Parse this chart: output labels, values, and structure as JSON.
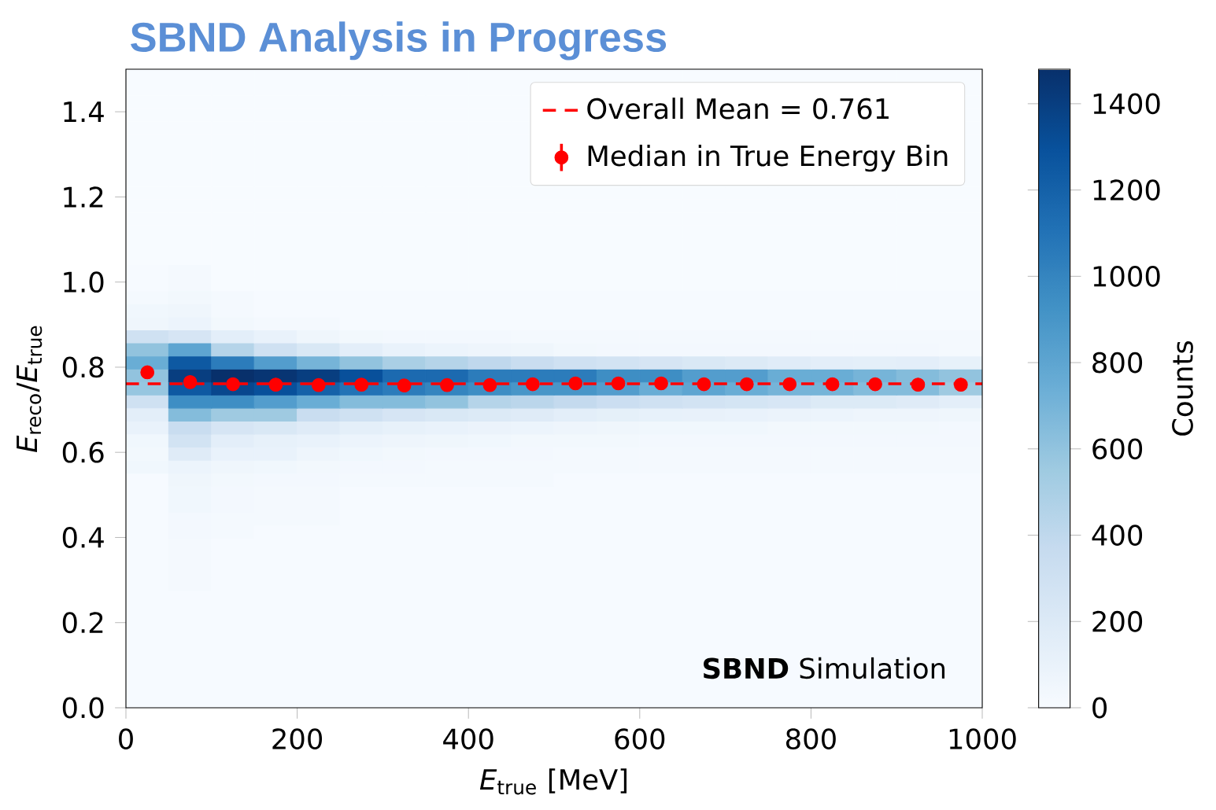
{
  "chart_data": {
    "type": "heatmap",
    "title": "SBND Analysis in Progress",
    "xlabel": "*E*$_{true}$ [MeV]",
    "ylabel": "*E*$_{reco}$/*E*$_{true}$",
    "clabel": "Counts",
    "annotations": [
      "**SBND** Simulation"
    ],
    "xlim": [
      0,
      1000
    ],
    "ylim": [
      0,
      1.5
    ],
    "xticks": [
      0,
      200,
      400,
      600,
      800,
      1000
    ],
    "yticks": [
      {
        "value": 0,
        "label": "0.0"
      },
      0.2,
      0.4,
      0.6,
      0.8,
      {
        "value": 1,
        "label": "1.0"
      },
      1.2,
      1.4
    ],
    "clim": [
      0,
      1480
    ],
    "cticks": [
      0,
      200,
      400,
      600,
      800,
      1000,
      1200,
      1400
    ],
    "legend": "top right",
    "ref_lines": [
      {
        "axis": "y",
        "value": 0.761,
        "label": "Overall Mean = 0.761",
        "color": "#ff0000",
        "line_style": "dashed"
      }
    ],
    "series": [
      {
        "type": "scatter",
        "name": "Median in True Energy Bin",
        "color": "#ff0000",
        "marker": "circle",
        "x": [
          25,
          75,
          125,
          175,
          225,
          275,
          325,
          375,
          425,
          475,
          525,
          575,
          625,
          675,
          725,
          775,
          825,
          875,
          925,
          975
        ],
        "values": [
          0.788,
          0.765,
          0.76,
          0.759,
          0.758,
          0.759,
          0.757,
          0.758,
          0.758,
          0.76,
          0.762,
          0.762,
          0.762,
          0.76,
          0.76,
          0.76,
          0.76,
          0.76,
          0.759,
          0.759
        ]
      }
    ],
    "cells": [
      [
        0,
        0,
        0,
        0,
        0,
        0,
        0,
        0,
        0,
        0,
        0,
        0,
        0,
        0,
        0,
        0,
        0,
        0,
        0,
        0
      ],
      [
        0,
        0,
        0,
        0,
        0,
        0,
        0,
        0,
        0,
        0,
        0,
        0,
        0,
        0,
        0,
        0,
        0,
        0,
        0,
        0
      ],
      [
        0,
        0,
        0,
        0,
        0,
        0,
        0,
        0,
        0,
        0,
        0,
        0,
        0,
        0,
        0,
        0,
        0,
        0,
        0,
        0
      ],
      [
        0,
        0,
        0,
        0,
        0,
        0,
        0,
        0,
        0,
        0,
        0,
        0,
        0,
        0,
        0,
        0,
        0,
        0,
        0,
        0
      ],
      [
        0,
        0,
        0,
        0,
        0,
        0,
        0,
        0,
        0,
        0,
        0,
        0,
        0,
        0,
        0,
        0,
        0,
        0,
        0,
        0
      ],
      [
        0,
        0,
        0,
        0,
        0,
        0,
        0,
        0,
        0,
        0,
        0,
        0,
        0,
        0,
        0,
        0,
        0,
        0,
        0,
        0
      ],
      [
        0,
        0,
        0,
        0,
        0,
        0,
        0,
        0,
        0,
        0,
        0,
        0,
        0,
        0,
        0,
        0,
        0,
        0,
        0,
        0
      ],
      [
        0,
        0,
        0,
        0,
        0,
        0,
        0,
        0,
        0,
        0,
        0,
        0,
        0,
        0,
        0,
        0,
        0,
        0,
        0,
        0
      ],
      [
        0,
        0,
        0,
        0,
        0,
        0,
        0,
        0,
        0,
        0,
        0,
        0,
        0,
        0,
        0,
        0,
        0,
        0,
        0,
        0
      ],
      [
        0,
        0,
        0,
        0,
        0,
        0,
        0,
        0,
        0,
        0,
        0,
        0,
        0,
        0,
        0,
        0,
        0,
        0,
        0,
        0
      ],
      [
        0,
        0,
        0,
        0,
        0,
        0,
        0,
        0,
        0,
        0,
        0,
        0,
        0,
        0,
        0,
        0,
        0,
        0,
        0,
        0
      ],
      [
        0,
        0,
        0,
        0,
        0,
        0,
        0,
        0,
        0,
        0,
        0,
        0,
        0,
        0,
        0,
        0,
        0,
        0,
        0,
        0
      ],
      [
        0,
        0,
        0,
        0,
        0,
        0,
        0,
        0,
        0,
        0,
        0,
        0,
        0,
        0,
        0,
        0,
        0,
        0,
        0,
        0
      ],
      [
        0,
        0,
        0,
        0,
        0,
        0,
        0,
        0,
        0,
        0,
        0,
        0,
        0,
        0,
        0,
        0,
        0,
        0,
        0,
        0
      ],
      [
        0,
        0,
        0,
        0,
        0,
        0,
        0,
        0,
        0,
        0,
        0,
        0,
        0,
        0,
        0,
        0,
        0,
        0,
        0,
        0
      ],
      [
        10,
        20,
        0,
        0,
        0,
        0,
        0,
        0,
        0,
        0,
        0,
        0,
        0,
        0,
        0,
        0,
        0,
        0,
        0,
        0
      ],
      [
        10,
        20,
        0,
        0,
        0,
        0,
        0,
        0,
        0,
        0,
        0,
        0,
        0,
        0,
        0,
        0,
        0,
        0,
        0,
        0
      ],
      [
        20,
        40,
        20,
        10,
        10,
        10,
        10,
        10,
        10,
        10,
        10,
        10,
        10,
        10,
        10,
        10,
        10,
        10,
        10,
        10
      ],
      [
        50,
        60,
        20,
        10,
        10,
        10,
        10,
        10,
        10,
        10,
        10,
        10,
        10,
        10,
        10,
        10,
        10,
        10,
        10,
        10
      ],
      [
        60,
        80,
        40,
        20,
        20,
        10,
        10,
        10,
        10,
        10,
        10,
        10,
        10,
        10,
        10,
        10,
        10,
        10,
        10,
        10
      ],
      [
        300,
        250,
        150,
        100,
        60,
        40,
        30,
        30,
        30,
        20,
        20,
        20,
        20,
        20,
        20,
        20,
        20,
        20,
        20,
        20
      ],
      [
        600,
        800,
        450,
        300,
        220,
        150,
        100,
        80,
        70,
        60,
        40,
        30,
        30,
        30,
        30,
        30,
        30,
        30,
        30,
        20
      ],
      [
        750,
        1250,
        1050,
        850,
        700,
        600,
        500,
        450,
        400,
        350,
        300,
        280,
        250,
        220,
        200,
        170,
        150,
        140,
        150,
        120
      ],
      [
        600,
        1400,
        1480,
        1450,
        1400,
        1300,
        1150,
        1150,
        1050,
        1050,
        1050,
        950,
        950,
        850,
        850,
        750,
        750,
        700,
        650,
        600
      ],
      [
        580,
        1250,
        1350,
        1300,
        1200,
        1100,
        1050,
        1000,
        950,
        900,
        900,
        850,
        750,
        800,
        750,
        700,
        700,
        650,
        650,
        550
      ],
      [
        300,
        950,
        950,
        850,
        750,
        650,
        650,
        600,
        450,
        420,
        380,
        330,
        300,
        280,
        260,
        240,
        200,
        200,
        180,
        150
      ],
      [
        150,
        650,
        550,
        550,
        350,
        300,
        250,
        220,
        200,
        180,
        150,
        130,
        120,
        110,
        100,
        90,
        80,
        70,
        70,
        60
      ],
      [
        100,
        350,
        250,
        220,
        180,
        140,
        120,
        100,
        90,
        80,
        70,
        60,
        50,
        50,
        50,
        40,
        40,
        40,
        40,
        30
      ],
      [
        50,
        280,
        150,
        120,
        100,
        80,
        70,
        60,
        50,
        40,
        40,
        40,
        30,
        30,
        30,
        30,
        30,
        30,
        30,
        30
      ],
      [
        40,
        180,
        100,
        100,
        70,
        50,
        40,
        30,
        30,
        30,
        20,
        20,
        20,
        20,
        20,
        20,
        20,
        20,
        20,
        20
      ],
      [
        50,
        80,
        60,
        50,
        40,
        30,
        30,
        20,
        20,
        20,
        20,
        20,
        20,
        20,
        20,
        20,
        20,
        20,
        20,
        20
      ],
      [
        10,
        60,
        40,
        30,
        30,
        20,
        20,
        20,
        20,
        20,
        10,
        10,
        10,
        10,
        10,
        10,
        10,
        10,
        10,
        10
      ],
      [
        10,
        50,
        30,
        20,
        20,
        10,
        10,
        10,
        10,
        10,
        10,
        10,
        10,
        10,
        10,
        10,
        10,
        10,
        10,
        10
      ],
      [
        10,
        50,
        30,
        20,
        20,
        10,
        10,
        10,
        10,
        10,
        10,
        10,
        10,
        10,
        10,
        10,
        10,
        10,
        10,
        10
      ],
      [
        10,
        30,
        20,
        20,
        20,
        10,
        10,
        10,
        10,
        10,
        10,
        10,
        10,
        10,
        10,
        10,
        10,
        10,
        10,
        10
      ],
      [
        10,
        30,
        20,
        10,
        10,
        10,
        10,
        10,
        10,
        10,
        10,
        10,
        10,
        10,
        10,
        10,
        10,
        10,
        10,
        10
      ],
      [
        10,
        20,
        10,
        10,
        10,
        10,
        10,
        10,
        10,
        10,
        10,
        10,
        10,
        10,
        10,
        10,
        10,
        10,
        10,
        10
      ],
      [
        10,
        20,
        10,
        10,
        10,
        10,
        10,
        10,
        10,
        10,
        10,
        10,
        10,
        10,
        10,
        10,
        10,
        10,
        10,
        10
      ],
      [
        10,
        20,
        10,
        10,
        10,
        10,
        10,
        10,
        10,
        10,
        10,
        10,
        10,
        10,
        10,
        10,
        10,
        10,
        10,
        10
      ],
      [
        10,
        20,
        10,
        10,
        10,
        10,
        10,
        10,
        10,
        10,
        10,
        10,
        10,
        10,
        10,
        10,
        10,
        10,
        10,
        10
      ],
      [
        10,
        10,
        10,
        10,
        10,
        10,
        10,
        10,
        10,
        10,
        10,
        10,
        10,
        10,
        10,
        10,
        10,
        10,
        10,
        10
      ],
      [
        10,
        10,
        10,
        10,
        10,
        10,
        10,
        10,
        10,
        10,
        10,
        10,
        10,
        10,
        10,
        10,
        10,
        10,
        10,
        10
      ],
      [
        10,
        10,
        10,
        10,
        10,
        10,
        10,
        10,
        10,
        10,
        10,
        10,
        10,
        10,
        10,
        10,
        10,
        10,
        10,
        10
      ],
      [
        10,
        10,
        10,
        10,
        10,
        10,
        10,
        10,
        10,
        10,
        10,
        10,
        10,
        10,
        10,
        10,
        10,
        10,
        10,
        10
      ],
      [
        10,
        10,
        10,
        10,
        10,
        10,
        10,
        10,
        10,
        10,
        10,
        10,
        10,
        10,
        10,
        10,
        10,
        10,
        10,
        10
      ],
      [
        10,
        10,
        10,
        10,
        10,
        10,
        10,
        10,
        10,
        10,
        10,
        10,
        10,
        10,
        10,
        10,
        10,
        10,
        10,
        10
      ],
      [
        10,
        10,
        10,
        10,
        10,
        10,
        10,
        10,
        10,
        10,
        10,
        10,
        10,
        10,
        10,
        10,
        10,
        10,
        10,
        10
      ],
      [
        10,
        10,
        10,
        10,
        10,
        10,
        10,
        10,
        10,
        10,
        10,
        10,
        10,
        10,
        10,
        10,
        10,
        10,
        10,
        10
      ],
      [
        10,
        10,
        10,
        10,
        10,
        10,
        10,
        10,
        10,
        10,
        10,
        10,
        10,
        10,
        10,
        10,
        10,
        10,
        10,
        10
      ]
    ]
  }
}
